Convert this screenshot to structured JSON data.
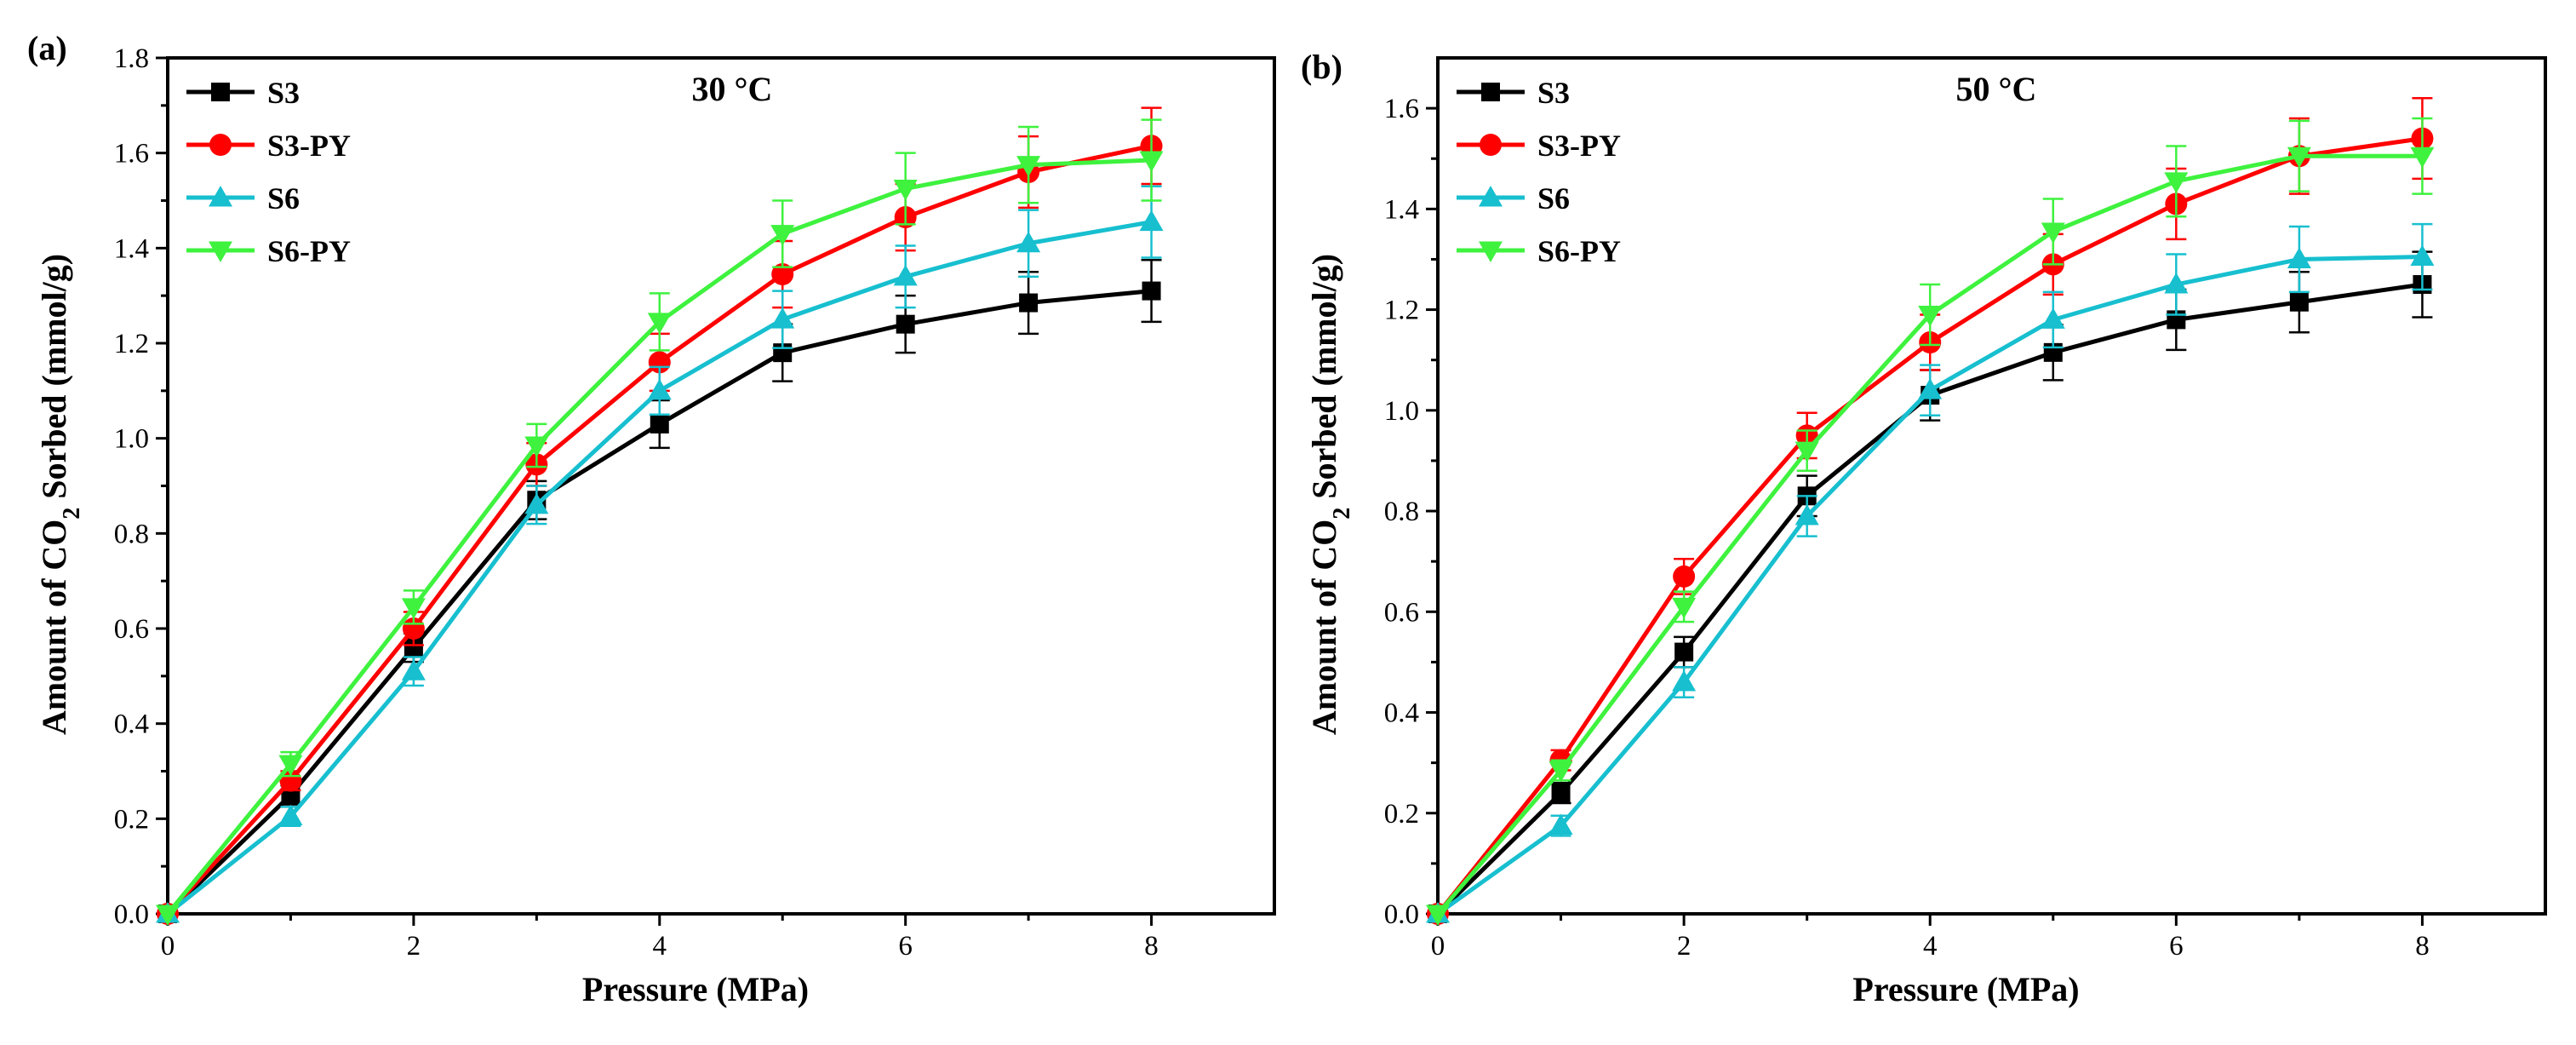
{
  "chart_data": [
    {
      "type": "line",
      "panel_label": "(a)",
      "annotation": "30 °C",
      "xlabel": "Pressure (MPa)",
      "ylabel_parts": [
        "Amount of CO",
        "2",
        " Sorbed (mmol/g)"
      ],
      "xlim": [
        0,
        9
      ],
      "ylim": [
        0,
        1.8
      ],
      "xticks": [
        0,
        2,
        4,
        6,
        8
      ],
      "yticks": [
        0.0,
        0.2,
        0.4,
        0.6,
        0.8,
        1.0,
        1.2,
        1.4,
        1.6,
        1.8
      ],
      "ytick_labels": [
        "0.0",
        "0.2",
        "0.4",
        "0.6",
        "0.8",
        "1.0",
        "1.2",
        "1.4",
        "1.6",
        "1.8"
      ],
      "x": [
        0,
        1,
        2,
        3,
        4,
        5,
        6,
        7,
        8
      ],
      "legend_position": "top-left",
      "series": [
        {
          "name": "S3",
          "color": "#000000",
          "marker": "square",
          "values": [
            0,
            0.25,
            0.56,
            0.87,
            1.03,
            1.18,
            1.24,
            1.285,
            1.31
          ],
          "errors": [
            0,
            0.02,
            0.03,
            0.04,
            0.05,
            0.06,
            0.06,
            0.065,
            0.065
          ]
        },
        {
          "name": "S3-PY",
          "color": "#ff0000",
          "marker": "circle",
          "values": [
            0,
            0.28,
            0.6,
            0.945,
            1.16,
            1.345,
            1.465,
            1.56,
            1.615
          ],
          "errors": [
            0,
            0.02,
            0.035,
            0.045,
            0.06,
            0.07,
            0.07,
            0.075,
            0.08
          ]
        },
        {
          "name": "S6",
          "color": "#17bfcf",
          "marker": "triangle-up",
          "values": [
            0,
            0.205,
            0.51,
            0.86,
            1.1,
            1.25,
            1.34,
            1.41,
            1.455
          ],
          "errors": [
            0,
            0.02,
            0.03,
            0.04,
            0.05,
            0.06,
            0.065,
            0.07,
            0.075
          ]
        },
        {
          "name": "S6-PY",
          "color": "#3ef23e",
          "marker": "triangle-down",
          "values": [
            0,
            0.315,
            0.645,
            0.985,
            1.245,
            1.43,
            1.525,
            1.575,
            1.585
          ],
          "errors": [
            0,
            0.025,
            0.035,
            0.045,
            0.06,
            0.07,
            0.075,
            0.08,
            0.085
          ]
        }
      ]
    },
    {
      "type": "line",
      "panel_label": "(b)",
      "annotation": "50 °C",
      "xlabel": "Pressure (MPa)",
      "ylabel_parts": [
        "Amount of CO",
        "2",
        " Sorbed (mmol/g)"
      ],
      "xlim": [
        0,
        9
      ],
      "ylim": [
        0,
        1.7
      ],
      "xticks": [
        0,
        2,
        4,
        6,
        8
      ],
      "yticks": [
        0.0,
        0.2,
        0.4,
        0.6,
        0.8,
        1.0,
        1.2,
        1.4,
        1.6
      ],
      "ytick_labels": [
        "0.0",
        "0.2",
        "0.4",
        "0.6",
        "0.8",
        "1.0",
        "1.2",
        "1.4",
        "1.6"
      ],
      "x": [
        0,
        1,
        2,
        3,
        4,
        5,
        6,
        7,
        8
      ],
      "legend_position": "top-left",
      "series": [
        {
          "name": "S3",
          "color": "#000000",
          "marker": "square",
          "values": [
            0,
            0.24,
            0.52,
            0.83,
            1.03,
            1.115,
            1.18,
            1.215,
            1.25
          ],
          "errors": [
            0,
            0.02,
            0.03,
            0.04,
            0.05,
            0.055,
            0.06,
            0.06,
            0.065
          ]
        },
        {
          "name": "S3-PY",
          "color": "#ff0000",
          "marker": "circle",
          "values": [
            0,
            0.305,
            0.67,
            0.95,
            1.135,
            1.29,
            1.41,
            1.505,
            1.54
          ],
          "errors": [
            0,
            0.02,
            0.035,
            0.045,
            0.055,
            0.06,
            0.07,
            0.075,
            0.08
          ]
        },
        {
          "name": "S6",
          "color": "#17bfcf",
          "marker": "triangle-up",
          "values": [
            0,
            0.175,
            0.46,
            0.79,
            1.04,
            1.18,
            1.25,
            1.3,
            1.305
          ],
          "errors": [
            0,
            0.02,
            0.03,
            0.04,
            0.05,
            0.055,
            0.06,
            0.065,
            0.065
          ]
        },
        {
          "name": "S6-PY",
          "color": "#3ef23e",
          "marker": "triangle-down",
          "values": [
            0,
            0.285,
            0.61,
            0.92,
            1.19,
            1.355,
            1.455,
            1.505,
            1.505
          ],
          "errors": [
            0,
            0.02,
            0.03,
            0.04,
            0.06,
            0.065,
            0.07,
            0.07,
            0.075
          ]
        }
      ]
    }
  ]
}
